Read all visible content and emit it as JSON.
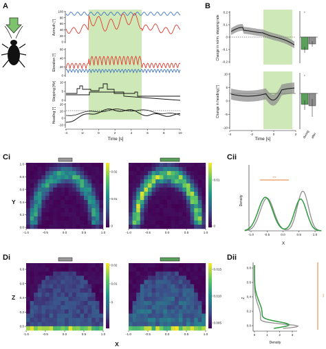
{
  "panels": {
    "A": "A",
    "B": "B",
    "Ci": "Ci",
    "Cii": "Cii",
    "Di": "Di",
    "Dii": "Dii"
  },
  "colors": {
    "stim_shade": "#cfe8b8",
    "blue_trace": "#3f74c0",
    "red_trace": "#e0392d",
    "green_trace": "#2d9a3c",
    "gray_trace": "#8f8f8f",
    "orange_sig": "#e07b2c",
    "heatmap_bg": "#3b1f5e",
    "insect_arrow": "#7cc36b"
  },
  "icons": {
    "insect": "cockroach-icon",
    "arrow": "down-arrow-icon"
  },
  "A": {
    "azimuth": {
      "label": "Azimuth [°]",
      "ticks": [
        "100",
        "80",
        "60",
        "40",
        "20",
        "0"
      ]
    },
    "elevation": {
      "label": "Elevation [°]",
      "ticks": [
        "60",
        "40",
        "20",
        "0"
      ]
    },
    "stepping": {
      "label": "Stepping [Hz]",
      "ticks": [
        "10",
        "5",
        "0"
      ]
    },
    "heading": {
      "label": "Heading [°]",
      "ticks": [
        "20",
        "10",
        "0",
        "-10"
      ]
    },
    "xlabel": "Time [s]",
    "xticks": [
      "-4",
      "-2",
      "0",
      "2",
      "4",
      "6",
      "8",
      "10"
    ]
  },
  "B": {
    "top_ylabel": "Change in norm. stepping rate",
    "top_ticks": [
      "0.2",
      "0.1",
      "0",
      "-0.1",
      "-0.2"
    ],
    "bottom_ylabel": "Change in heading [°]",
    "bottom_ticks": [
      "10",
      "5",
      "0",
      "-5",
      "-10"
    ],
    "xlabel": "Time [s]",
    "xticks": [
      "-4",
      "-2",
      "0",
      "2"
    ],
    "bar_labels": [
      "during",
      "after"
    ],
    "top_sig": "*",
    "bottom_sig": "*"
  },
  "C": {
    "ylabel": "Y",
    "yticks": [
      "1.0",
      "0.8",
      "0.6",
      "0.4",
      "0.2",
      "0.0"
    ],
    "xticks": [
      "-1.0",
      "-0.5",
      "0.0",
      "0.5",
      "1.0"
    ],
    "cbar1": [
      "0.02",
      "0.01",
      "0"
    ],
    "cbar2": [
      "0.01",
      "0"
    ],
    "ii_ylabel": "Density",
    "ii_xlabel": "X",
    "ii_xticks": [
      "-1.0",
      "-0.5",
      "0.0",
      "0.5",
      "1.0"
    ],
    "ii_sig": "***"
  },
  "D": {
    "ylabel": "Z",
    "xlabel": "X",
    "yticks": [
      "0.8",
      "0.6",
      "0.4",
      "0.2",
      "0.0"
    ],
    "xticks": [
      "-1.0",
      "-0.5",
      "0.0",
      "0.5",
      "1.0"
    ],
    "cbar1": [
      "0.02",
      "0.01",
      "0"
    ],
    "cbar2": [
      "0.015",
      "0.010",
      "0.005"
    ],
    "ii_ylabel": "Z",
    "ii_xlabel": "Density",
    "ii_xticks": [
      "0",
      "1",
      "2",
      "3"
    ],
    "ii_yticks": [
      "0.8",
      "0.6",
      "0.4",
      "0.2",
      "0.0"
    ],
    "ii_sig": "***"
  }
}
